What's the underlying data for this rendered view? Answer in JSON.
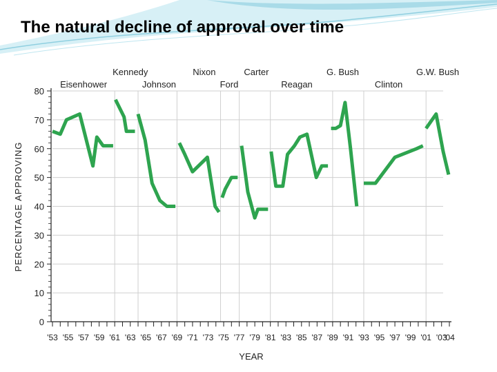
{
  "slide": {
    "title": "The natural decline of approval over time"
  },
  "colors": {
    "line": "#2ea44f",
    "grid": "#cfcfcf",
    "axis": "#222222",
    "text": "#222222",
    "banner": "#c9ecf4"
  },
  "chart_data": {
    "type": "line",
    "title": "",
    "xlabel": "YEAR",
    "ylabel": "PERCENTAGE APPROVING",
    "xlim": [
      1953,
      2004
    ],
    "ylim": [
      0,
      80
    ],
    "y_ticks": [
      0,
      10,
      20,
      30,
      40,
      50,
      60,
      70,
      80
    ],
    "x_tick_labels": [
      {
        "year": 1953,
        "label": "'53"
      },
      {
        "year": 1955,
        "label": "'55"
      },
      {
        "year": 1957,
        "label": "'57"
      },
      {
        "year": 1959,
        "label": "'59"
      },
      {
        "year": 1961,
        "label": "'61"
      },
      {
        "year": 1963,
        "label": "'63"
      },
      {
        "year": 1965,
        "label": "'65"
      },
      {
        "year": 1967,
        "label": "'67"
      },
      {
        "year": 1969,
        "label": "'69"
      },
      {
        "year": 1971,
        "label": "'71"
      },
      {
        "year": 1973,
        "label": "'73"
      },
      {
        "year": 1975,
        "label": "'75"
      },
      {
        "year": 1977,
        "label": "'77"
      },
      {
        "year": 1979,
        "label": "'79"
      },
      {
        "year": 1981,
        "label": "'81"
      },
      {
        "year": 1983,
        "label": "'83"
      },
      {
        "year": 1985,
        "label": "'85"
      },
      {
        "year": 1987,
        "label": "'87"
      },
      {
        "year": 1989,
        "label": "'89"
      },
      {
        "year": 1991,
        "label": "'91"
      },
      {
        "year": 1993,
        "label": "'93"
      },
      {
        "year": 1995,
        "label": "'95"
      },
      {
        "year": 1997,
        "label": "'97"
      },
      {
        "year": 1999,
        "label": "'99"
      },
      {
        "year": 2001,
        "label": "'01"
      },
      {
        "year": 2003,
        "label": "'03"
      },
      {
        "year": 2004,
        "label": "'04"
      }
    ],
    "grid": true,
    "presidents": [
      {
        "name": "Eisenhower",
        "row": "lower",
        "label_year": 1957.0,
        "boundary_start": 1953.0
      },
      {
        "name": "Kennedy",
        "row": "upper",
        "label_year": 1963.0,
        "boundary_start": 1961.0
      },
      {
        "name": "Johnson",
        "row": "lower",
        "label_year": 1966.7,
        "boundary_start": 1964.0
      },
      {
        "name": "Nixon",
        "row": "upper",
        "label_year": 1972.5,
        "boundary_start": 1969.0
      },
      {
        "name": "Ford",
        "row": "lower",
        "label_year": 1975.7,
        "boundary_start": 1974.6
      },
      {
        "name": "Carter",
        "row": "upper",
        "label_year": 1979.2,
        "boundary_start": 1977.0
      },
      {
        "name": "Reagan",
        "row": "lower",
        "label_year": 1984.4,
        "boundary_start": 1981.0
      },
      {
        "name": "G. Bush",
        "row": "upper",
        "label_year": 1990.3,
        "boundary_start": 1989.0
      },
      {
        "name": "Clinton",
        "row": "lower",
        "label_year": 1996.2,
        "boundary_start": 1993.0
      },
      {
        "name": "G.W. Bush",
        "row": "upper",
        "label_year": 2002.5,
        "boundary_start": 2001.0
      }
    ],
    "series": [
      {
        "name": "Eisenhower",
        "points": [
          [
            1953.0,
            66
          ],
          [
            1954.0,
            65
          ],
          [
            1954.8,
            70
          ],
          [
            1956.5,
            72
          ],
          [
            1958.2,
            54
          ],
          [
            1958.7,
            64
          ],
          [
            1959.5,
            61
          ],
          [
            1960.8,
            61
          ]
        ]
      },
      {
        "name": "Kennedy",
        "points": [
          [
            1961.1,
            77
          ],
          [
            1962.2,
            71
          ],
          [
            1962.5,
            66
          ],
          [
            1963.6,
            66
          ]
        ]
      },
      {
        "name": "Johnson",
        "points": [
          [
            1964.0,
            72
          ],
          [
            1964.9,
            63
          ],
          [
            1965.8,
            48
          ],
          [
            1966.8,
            42
          ],
          [
            1967.7,
            40
          ],
          [
            1968.8,
            40
          ]
        ]
      },
      {
        "name": "Nixon",
        "points": [
          [
            1969.3,
            62
          ],
          [
            1970.0,
            58
          ],
          [
            1971.0,
            52
          ],
          [
            1972.9,
            57
          ],
          [
            1973.9,
            40
          ],
          [
            1974.4,
            38
          ]
        ]
      },
      {
        "name": "Ford",
        "points": [
          [
            1974.8,
            43
          ],
          [
            1975.2,
            46
          ],
          [
            1976.0,
            50
          ],
          [
            1976.8,
            50
          ]
        ]
      },
      {
        "name": "Carter",
        "points": [
          [
            1977.3,
            61
          ],
          [
            1978.1,
            45
          ],
          [
            1979.0,
            36
          ],
          [
            1979.4,
            39
          ],
          [
            1980.7,
            39
          ]
        ]
      },
      {
        "name": "Reagan",
        "points": [
          [
            1981.1,
            59
          ],
          [
            1981.7,
            47
          ],
          [
            1982.6,
            47
          ],
          [
            1983.2,
            58
          ],
          [
            1984.1,
            61
          ],
          [
            1984.8,
            64
          ],
          [
            1985.7,
            65
          ],
          [
            1986.9,
            50
          ],
          [
            1987.6,
            54
          ],
          [
            1988.4,
            54
          ]
        ]
      },
      {
        "name": "G. Bush",
        "points": [
          [
            1988.8,
            67
          ],
          [
            1989.4,
            67
          ],
          [
            1990.0,
            68
          ],
          [
            1990.6,
            76
          ],
          [
            1991.3,
            60
          ],
          [
            1992.1,
            40
          ]
        ]
      },
      {
        "name": "Clinton",
        "points": [
          [
            1993.0,
            48
          ],
          [
            1994.5,
            48
          ],
          [
            1997.0,
            57
          ],
          [
            1999.8,
            60
          ],
          [
            2000.6,
            61
          ]
        ]
      },
      {
        "name": "G.W. Bush",
        "points": [
          [
            2001.0,
            67
          ],
          [
            2002.3,
            72
          ],
          [
            2003.2,
            59
          ],
          [
            2003.9,
            51
          ]
        ]
      }
    ]
  }
}
